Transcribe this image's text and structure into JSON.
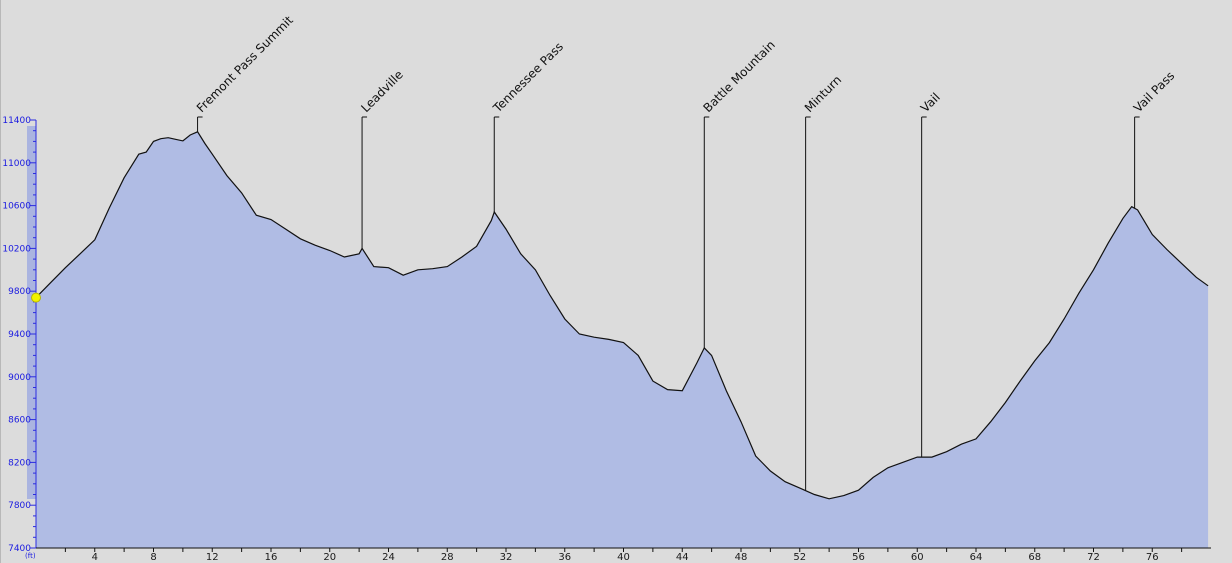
{
  "chart_data": {
    "type": "area",
    "title": "",
    "xlabel": "",
    "ylabel": "(ft)",
    "xlim": [
      0,
      80
    ],
    "ylim": [
      7400,
      11400
    ],
    "x_ticks": [
      4,
      8,
      12,
      16,
      20,
      24,
      28,
      32,
      36,
      40,
      44,
      48,
      52,
      56,
      60,
      64,
      68,
      72,
      76
    ],
    "y_ticks": [
      7400,
      7800,
      8200,
      8600,
      9000,
      9400,
      9800,
      10200,
      10600,
      11000,
      11400
    ],
    "fill_color": "#b0bce4",
    "line_color": "#111111",
    "marker_color": "#f2f200",
    "current_position": {
      "x": 0,
      "y": 9740
    },
    "series": [
      {
        "x": [
          0,
          1,
          2,
          3,
          4,
          5,
          6,
          7,
          7.5,
          8,
          8.5,
          9,
          9.5,
          10,
          10.5,
          11,
          11.5,
          12,
          13,
          14,
          15,
          16,
          17,
          18,
          19,
          20,
          21,
          22,
          22.2,
          23,
          24,
          25,
          26,
          27,
          28,
          29,
          30,
          31,
          31.2,
          32,
          33,
          34,
          35,
          36,
          37,
          38,
          39,
          40,
          41,
          42,
          43,
          44,
          45,
          45.5,
          46,
          47,
          48,
          49,
          50,
          51,
          52,
          53,
          54,
          55,
          56,
          57,
          58,
          59,
          60,
          61,
          62,
          63,
          64,
          65,
          66,
          67,
          68,
          69,
          70,
          71,
          72,
          73,
          74,
          74.6,
          75,
          76,
          77,
          78,
          79,
          79.8
        ],
        "y": [
          9740,
          9880,
          10020,
          10150,
          10280,
          10580,
          10860,
          11080,
          11100,
          11200,
          11225,
          11235,
          11220,
          11205,
          11260,
          11290,
          11180,
          11080,
          10880,
          10720,
          10510,
          10470,
          10380,
          10290,
          10230,
          10180,
          10120,
          10150,
          10200,
          10030,
          10020,
          9950,
          10000,
          10010,
          10030,
          10120,
          10220,
          10460,
          10540,
          10380,
          10150,
          10000,
          9760,
          9540,
          9400,
          9370,
          9350,
          9320,
          9200,
          8960,
          8880,
          8870,
          9130,
          9270,
          9200,
          8870,
          8580,
          8260,
          8120,
          8020,
          7960,
          7900,
          7860,
          7890,
          7940,
          8060,
          8150,
          8200,
          8250,
          8250,
          8300,
          8370,
          8420,
          8580,
          8760,
          8960,
          9150,
          9320,
          9540,
          9780,
          10000,
          10250,
          10480,
          10590,
          10560,
          10330,
          10190,
          10060,
          9930,
          9850
        ]
      }
    ],
    "landmarks": [
      {
        "label": "Fremont Pass Summit",
        "x": 11
      },
      {
        "label": "Leadville",
        "x": 22.2
      },
      {
        "label": "Tennessee Pass",
        "x": 31.2
      },
      {
        "label": "Battle Mountain",
        "x": 45.5
      },
      {
        "label": "Minturn",
        "x": 52.4
      },
      {
        "label": "Vail",
        "x": 60.3
      },
      {
        "label": "Vail Pass",
        "x": 74.8
      }
    ]
  }
}
